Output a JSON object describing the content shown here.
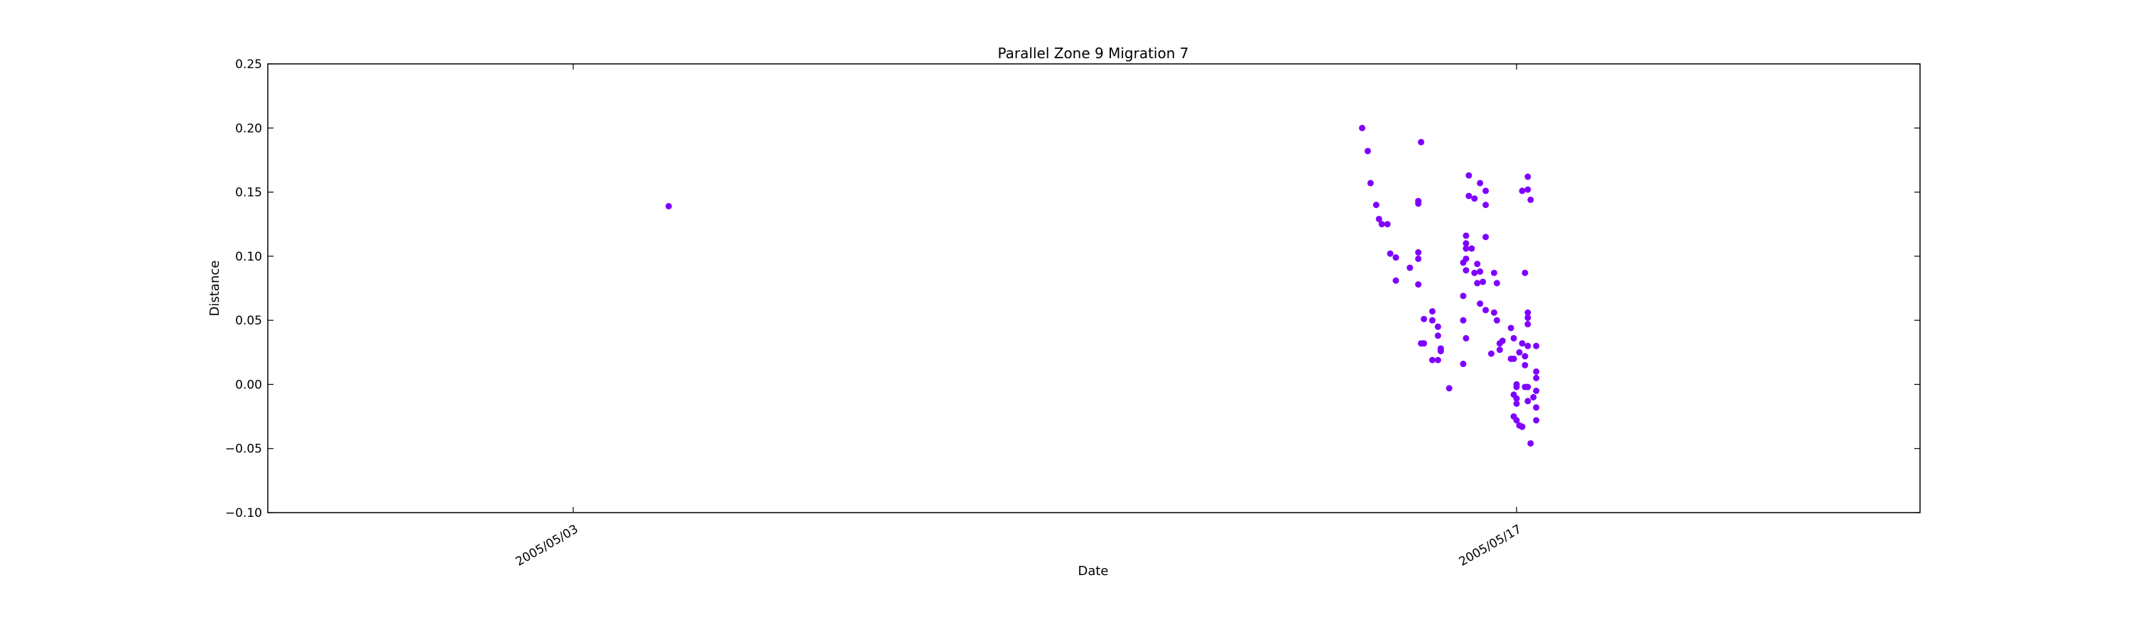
{
  "chart_data": {
    "type": "scatter",
    "title": "Parallel Zone 9 Migration 7",
    "xlabel": "Date",
    "ylabel": "Distance",
    "x_axis_type": "date",
    "xlim": [
      "2004-04-28",
      "2005-05-23"
    ],
    "ylim": [
      -0.1,
      0.25
    ],
    "y_ticks": [
      {
        "value": 0.25,
        "label": "0.25"
      },
      {
        "value": 0.2,
        "label": "0.20"
      },
      {
        "value": 0.15,
        "label": "0.15"
      },
      {
        "value": 0.1,
        "label": "0.10"
      },
      {
        "value": 0.05,
        "label": "0.05"
      },
      {
        "value": 0.0,
        "label": "0.00"
      },
      {
        "value": -0.05,
        "label": "−0.05"
      },
      {
        "value": -0.1,
        "label": "−0.10"
      }
    ],
    "x_ticks": [
      {
        "value": "2005-05-03",
        "label": "2005/05/03"
      },
      {
        "value": "2005-05-17",
        "label": "2005/05/17"
      }
    ],
    "grid": false,
    "marker_color": "#7f00ff",
    "series": [
      {
        "points": [
          [
            "2005-05-04 10:00",
            0.139
          ],
          [
            "2005-05-14 17:00",
            0.2
          ],
          [
            "2005-05-14 19:00",
            0.182
          ],
          [
            "2005-05-14 20:00",
            0.157
          ],
          [
            "2005-05-14 22:00",
            0.14
          ],
          [
            "2005-05-14 23:00",
            0.129
          ],
          [
            "2005-05-15 00:00",
            0.125
          ],
          [
            "2005-05-15 02:00",
            0.125
          ],
          [
            "2005-05-15 03:00",
            0.102
          ],
          [
            "2005-05-15 05:00",
            0.099
          ],
          [
            "2005-05-15 05:00",
            0.081
          ],
          [
            "2005-05-15 10:00",
            0.091
          ],
          [
            "2005-05-15 13:00",
            0.143
          ],
          [
            "2005-05-15 13:00",
            0.141
          ],
          [
            "2005-05-15 13:00",
            0.103
          ],
          [
            "2005-05-15 13:00",
            0.098
          ],
          [
            "2005-05-15 13:00",
            0.078
          ],
          [
            "2005-05-15 14:00",
            0.189
          ],
          [
            "2005-05-15 15:00",
            0.051
          ],
          [
            "2005-05-15 14:00",
            0.032
          ],
          [
            "2005-05-15 15:00",
            0.032
          ],
          [
            "2005-05-15 18:00",
            0.057
          ],
          [
            "2005-05-15 18:00",
            0.05
          ],
          [
            "2005-05-15 18:00",
            0.019
          ],
          [
            "2005-05-15 20:00",
            0.045
          ],
          [
            "2005-05-15 20:00",
            0.038
          ],
          [
            "2005-05-15 20:00",
            0.019
          ],
          [
            "2005-05-15 21:00",
            0.026
          ],
          [
            "2005-05-15 21:00",
            0.028
          ],
          [
            "2005-05-16 00:00",
            -0.003
          ],
          [
            "2005-05-16 05:00",
            0.016
          ],
          [
            "2005-05-16 05:00",
            0.05
          ],
          [
            "2005-05-16 05:00",
            0.069
          ],
          [
            "2005-05-16 06:00",
            0.036
          ],
          [
            "2005-05-16 05:00",
            0.095
          ],
          [
            "2005-05-16 06:00",
            0.098
          ],
          [
            "2005-05-16 06:00",
            0.106
          ],
          [
            "2005-05-16 06:00",
            0.11
          ],
          [
            "2005-05-16 06:00",
            0.116
          ],
          [
            "2005-05-16 06:00",
            0.089
          ],
          [
            "2005-05-16 07:00",
            0.163
          ],
          [
            "2005-05-16 07:00",
            0.147
          ],
          [
            "2005-05-16 08:00",
            0.106
          ],
          [
            "2005-05-16 09:00",
            0.145
          ],
          [
            "2005-05-16 09:00",
            0.087
          ],
          [
            "2005-05-16 10:00",
            0.094
          ],
          [
            "2005-05-16 10:00",
            0.079
          ],
          [
            "2005-05-16 11:00",
            0.157
          ],
          [
            "2005-05-16 11:00",
            0.088
          ],
          [
            "2005-05-16 11:00",
            0.063
          ],
          [
            "2005-05-16 12:00",
            0.08
          ],
          [
            "2005-05-16 13:00",
            0.151
          ],
          [
            "2005-05-16 13:00",
            0.14
          ],
          [
            "2005-05-16 13:00",
            0.115
          ],
          [
            "2005-05-16 13:00",
            0.058
          ],
          [
            "2005-05-16 15:00",
            0.024
          ],
          [
            "2005-05-16 16:00",
            0.087
          ],
          [
            "2005-05-16 16:00",
            0.056
          ],
          [
            "2005-05-16 17:00",
            0.079
          ],
          [
            "2005-05-16 17:00",
            0.05
          ],
          [
            "2005-05-16 18:00",
            0.032
          ],
          [
            "2005-05-16 18:00",
            0.027
          ],
          [
            "2005-05-16 19:00",
            0.034
          ],
          [
            "2005-05-16 22:00",
            0.044
          ],
          [
            "2005-05-16 22:00",
            0.02
          ],
          [
            "2005-05-16 23:00",
            0.02
          ],
          [
            "2005-05-16 23:00",
            0.036
          ],
          [
            "2005-05-16 23:00",
            -0.025
          ],
          [
            "2005-05-16 23:00",
            -0.008
          ],
          [
            "2005-05-17 00:00",
            -0.002
          ],
          [
            "2005-05-17 00:00",
            -0.011
          ],
          [
            "2005-05-17 00:00",
            -0.015
          ],
          [
            "2005-05-17 00:00",
            -0.028
          ],
          [
            "2005-05-17 00:00",
            0.0
          ],
          [
            "2005-05-17 01:00",
            0.025
          ],
          [
            "2005-05-17 01:00",
            -0.032
          ],
          [
            "2005-05-17 02:00",
            0.151
          ],
          [
            "2005-05-17 02:00",
            -0.033
          ],
          [
            "2005-05-17 02:00",
            -0.033
          ],
          [
            "2005-05-17 02:00",
            0.032
          ],
          [
            "2005-05-17 03:00",
            0.087
          ],
          [
            "2005-05-17 03:00",
            0.022
          ],
          [
            "2005-05-17 03:00",
            0.015
          ],
          [
            "2005-05-17 03:00",
            -0.002
          ],
          [
            "2005-05-17 04:00",
            0.056
          ],
          [
            "2005-05-17 04:00",
            0.052
          ],
          [
            "2005-05-17 04:00",
            0.047
          ],
          [
            "2005-05-17 04:00",
            0.03
          ],
          [
            "2005-05-17 04:00",
            -0.002
          ],
          [
            "2005-05-17 04:00",
            -0.013
          ],
          [
            "2005-05-17 04:00",
            0.162
          ],
          [
            "2005-05-17 04:00",
            0.152
          ],
          [
            "2005-05-17 05:00",
            0.144
          ],
          [
            "2005-05-17 05:00",
            -0.046
          ],
          [
            "2005-05-17 06:00",
            -0.01
          ],
          [
            "2005-05-17 07:00",
            0.03
          ],
          [
            "2005-05-17 07:00",
            0.01
          ],
          [
            "2005-05-17 07:00",
            0.005
          ],
          [
            "2005-05-17 07:00",
            -0.005
          ],
          [
            "2005-05-17 07:00",
            -0.018
          ],
          [
            "2005-05-17 07:00",
            -0.028
          ]
        ]
      }
    ]
  }
}
